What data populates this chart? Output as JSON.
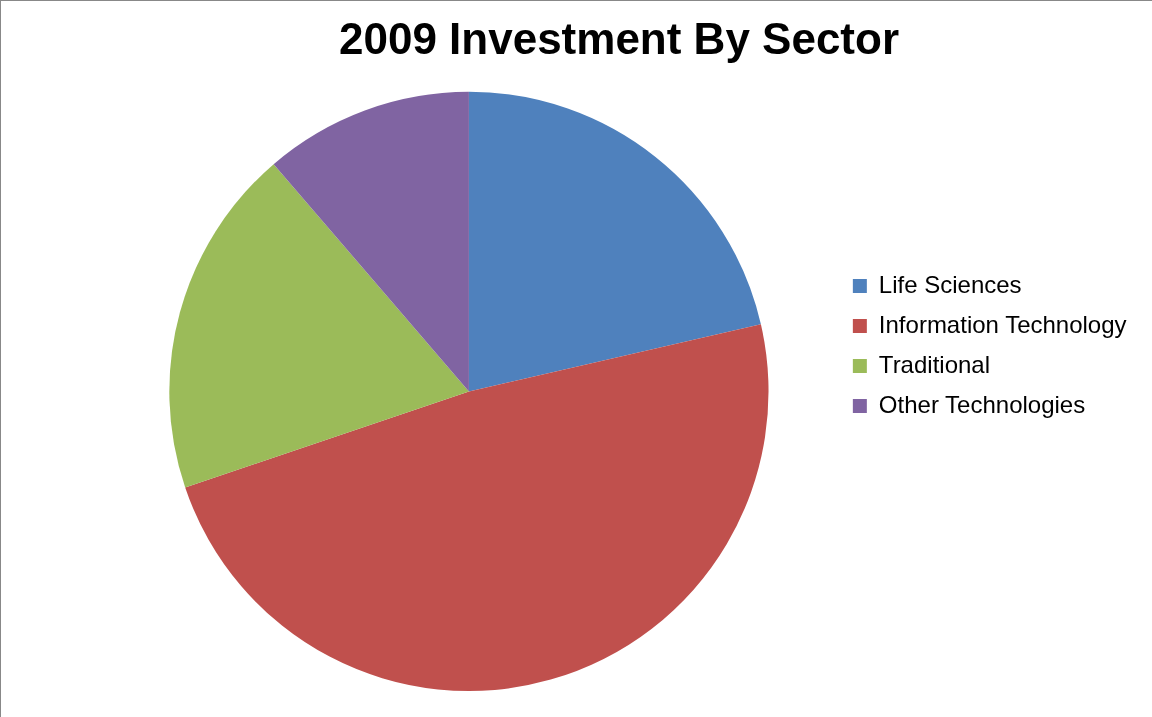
{
  "chart_data": {
    "type": "pie",
    "title": "2009 Investment By Sector",
    "categories": [
      "Life Sciences",
      "Information Technology",
      "Traditional",
      "Other Technologies"
    ],
    "values": [
      21.4,
      48.4,
      18.9,
      11.3
    ],
    "colors": [
      "#4f81bd",
      "#c0504d",
      "#9bbb59",
      "#8064a2"
    ],
    "legend": "right"
  }
}
